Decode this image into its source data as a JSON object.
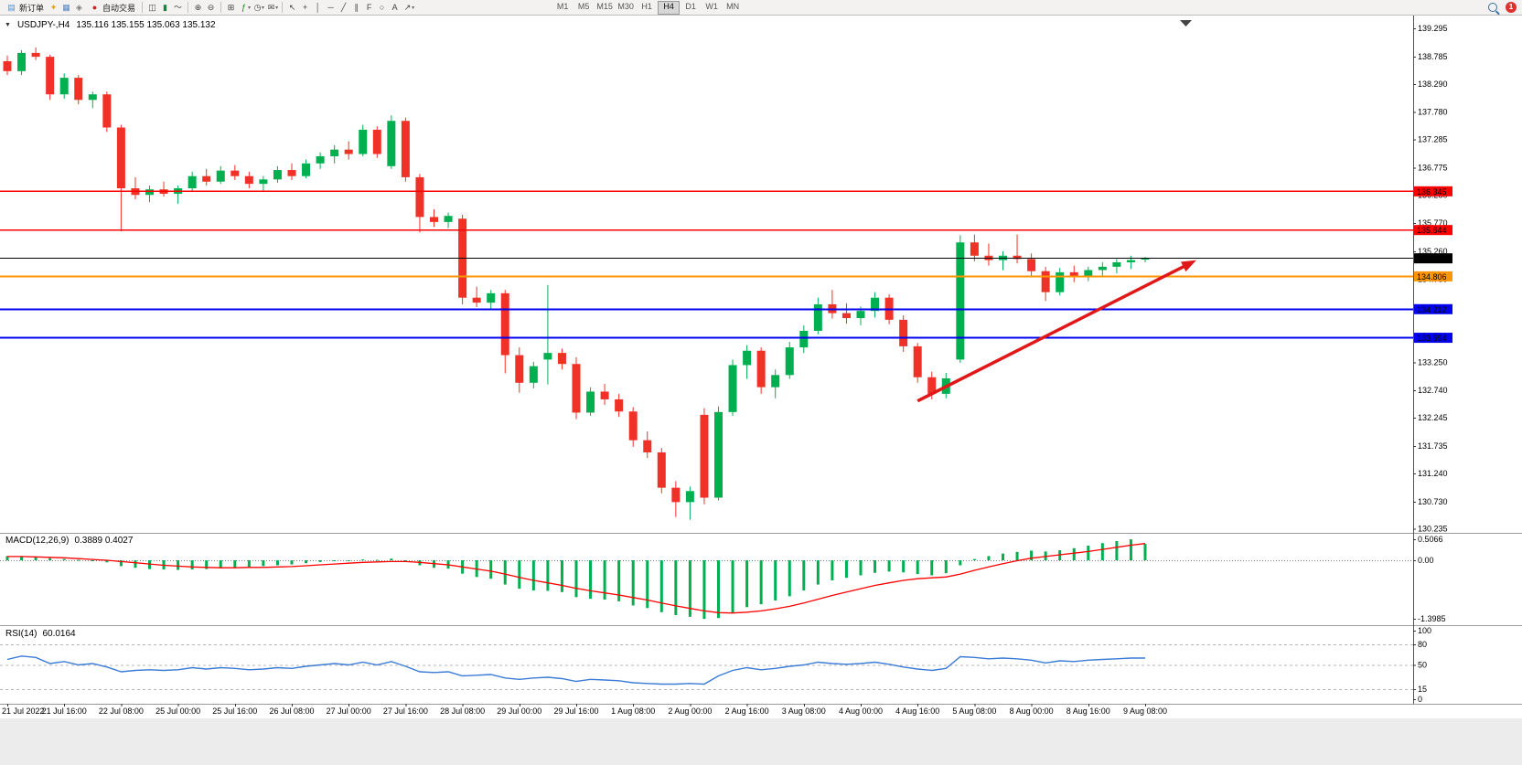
{
  "toolbar": {
    "new_order_label": "新订单",
    "auto_trading_label": "自动交易",
    "timeframes": [
      "M1",
      "M5",
      "M15",
      "M30",
      "H1",
      "H4",
      "D1",
      "W1",
      "MN"
    ],
    "active_timeframe": "H4",
    "notification_count": "1",
    "icons": {
      "caret": "▾",
      "new_order": "▤",
      "market_watch": "✦",
      "data_window": "▦",
      "navigator": "◈",
      "auto_trading": "●",
      "bar_chart": "◫",
      "candle_chart": "▮",
      "line_chart": "～",
      "zoom_in": "⊕",
      "zoom_out": "⊖",
      "tile_windows": "⊞",
      "indicators": "ƒ",
      "periods": "◷",
      "templates": "✉",
      "cursor": "↖",
      "crosshair": "+",
      "vline": "│",
      "hline": "─",
      "trendline": "╱",
      "channel": "∥",
      "fibonacci": "F",
      "ellipse": "○",
      "text_tool": "A",
      "arrows": "↗"
    }
  },
  "window": {
    "caret": "▼",
    "symbol_period": "USDJPY-,H4",
    "ohlc": "135.116 135.155 135.063 135.132"
  },
  "chart_data": {
    "type": "candlestick",
    "symbol": "USDJPY-",
    "timeframe": "H4",
    "title_ohlc": {
      "open": 135.116,
      "high": 135.155,
      "low": 135.063,
      "close": 135.132
    },
    "colors": {
      "bull": "#00b050",
      "bear": "#f03127",
      "macd_hist": "#00b050",
      "macd_signal": "#ff0000",
      "rsi": "#3a7bd5"
    },
    "candles": [
      [
        138.7,
        138.8,
        138.45,
        138.52
      ],
      [
        138.52,
        138.9,
        138.45,
        138.85
      ],
      [
        138.85,
        138.95,
        138.72,
        138.78
      ],
      [
        138.78,
        138.82,
        138.0,
        138.1
      ],
      [
        138.1,
        138.48,
        138.02,
        138.4
      ],
      [
        138.4,
        138.45,
        137.92,
        138.0
      ],
      [
        138.0,
        138.15,
        137.85,
        138.1
      ],
      [
        138.1,
        138.15,
        137.42,
        137.5
      ],
      [
        137.5,
        137.55,
        135.62,
        136.4
      ],
      [
        136.4,
        136.6,
        136.2,
        136.28
      ],
      [
        136.28,
        136.45,
        136.15,
        136.38
      ],
      [
        136.38,
        136.52,
        136.25,
        136.3
      ],
      [
        136.3,
        136.45,
        136.12,
        136.4
      ],
      [
        136.4,
        136.7,
        136.35,
        136.62
      ],
      [
        136.62,
        136.75,
        136.45,
        136.52
      ],
      [
        136.52,
        136.8,
        136.48,
        136.72
      ],
      [
        136.72,
        136.82,
        136.55,
        136.62
      ],
      [
        136.62,
        136.7,
        136.4,
        136.48
      ],
      [
        136.48,
        136.62,
        136.35,
        136.56
      ],
      [
        136.56,
        136.8,
        136.5,
        136.73
      ],
      [
        136.73,
        136.85,
        136.55,
        136.62
      ],
      [
        136.62,
        136.92,
        136.58,
        136.85
      ],
      [
        136.85,
        137.05,
        136.75,
        136.98
      ],
      [
        136.98,
        137.18,
        136.85,
        137.1
      ],
      [
        137.1,
        137.25,
        136.92,
        137.02
      ],
      [
        137.02,
        137.55,
        136.98,
        137.46
      ],
      [
        137.46,
        137.52,
        136.95,
        137.02
      ],
      [
        136.8,
        137.72,
        136.75,
        137.62
      ],
      [
        137.62,
        137.68,
        136.52,
        136.6
      ],
      [
        136.6,
        136.66,
        135.6,
        135.88
      ],
      [
        135.88,
        136.02,
        135.7,
        135.79
      ],
      [
        135.79,
        135.96,
        135.68,
        135.9
      ],
      [
        135.85,
        135.92,
        134.3,
        134.42
      ],
      [
        134.42,
        134.62,
        134.25,
        134.33
      ],
      [
        134.33,
        134.56,
        134.2,
        134.5
      ],
      [
        134.5,
        134.56,
        133.05,
        133.38
      ],
      [
        133.38,
        133.52,
        132.7,
        132.88
      ],
      [
        132.88,
        133.26,
        132.78,
        133.18
      ],
      [
        133.3,
        134.65,
        132.85,
        133.42
      ],
      [
        133.42,
        133.5,
        133.12,
        133.22
      ],
      [
        133.22,
        133.34,
        132.22,
        132.34
      ],
      [
        132.34,
        132.8,
        132.28,
        132.72
      ],
      [
        132.72,
        132.86,
        132.48,
        132.58
      ],
      [
        132.58,
        132.68,
        132.26,
        132.36
      ],
      [
        132.36,
        132.44,
        131.72,
        131.84
      ],
      [
        131.84,
        132.0,
        131.52,
        131.62
      ],
      [
        131.62,
        131.7,
        130.88,
        130.98
      ],
      [
        130.98,
        131.1,
        130.45,
        130.72
      ],
      [
        130.72,
        131.0,
        130.4,
        130.92
      ],
      [
        132.3,
        132.42,
        130.68,
        130.8
      ],
      [
        130.8,
        132.45,
        130.75,
        132.35
      ],
      [
        132.35,
        133.3,
        132.28,
        133.2
      ],
      [
        133.2,
        133.56,
        132.95,
        133.46
      ],
      [
        133.46,
        133.52,
        132.68,
        132.8
      ],
      [
        132.8,
        133.12,
        132.6,
        133.02
      ],
      [
        133.02,
        133.62,
        132.95,
        133.52
      ],
      [
        133.52,
        133.92,
        133.42,
        133.82
      ],
      [
        133.82,
        134.42,
        133.76,
        134.3
      ],
      [
        134.3,
        134.56,
        134.04,
        134.14
      ],
      [
        134.14,
        134.32,
        133.95,
        134.05
      ],
      [
        134.05,
        134.26,
        133.92,
        134.18
      ],
      [
        134.18,
        134.52,
        134.06,
        134.42
      ],
      [
        134.42,
        134.48,
        133.94,
        134.02
      ],
      [
        134.02,
        134.1,
        133.44,
        133.54
      ],
      [
        133.54,
        133.6,
        132.88,
        132.98
      ],
      [
        132.98,
        133.08,
        132.58,
        132.68
      ],
      [
        132.68,
        133.06,
        132.6,
        132.96
      ],
      [
        133.3,
        135.55,
        133.24,
        135.42
      ],
      [
        135.42,
        135.56,
        135.08,
        135.18
      ],
      [
        135.18,
        135.4,
        135.0,
        135.1
      ],
      [
        135.1,
        135.26,
        134.92,
        135.18
      ],
      [
        135.18,
        135.56,
        135.04,
        135.12
      ],
      [
        135.12,
        135.22,
        134.82,
        134.9
      ],
      [
        134.9,
        134.98,
        134.36,
        134.52
      ],
      [
        134.52,
        134.96,
        134.46,
        134.88
      ],
      [
        134.88,
        135.0,
        134.7,
        134.8
      ],
      [
        134.8,
        134.98,
        134.72,
        134.92
      ],
      [
        134.92,
        135.06,
        134.8,
        134.98
      ],
      [
        134.98,
        135.12,
        134.86,
        135.06
      ],
      [
        135.06,
        135.18,
        134.94,
        135.1
      ],
      [
        135.116,
        135.155,
        135.063,
        135.132
      ]
    ],
    "price_ticks": [
      139.295,
      138.785,
      138.29,
      137.78,
      137.285,
      136.775,
      136.28,
      135.77,
      135.26,
      134.75,
      134.24,
      133.73,
      133.25,
      132.74,
      132.245,
      131.735,
      131.24,
      130.73,
      130.235
    ],
    "hlines": [
      {
        "price": 136.345,
        "color": "#ff0000",
        "width": 1.2
      },
      {
        "price": 135.644,
        "color": "#ff0000",
        "width": 1.2
      },
      {
        "price": 135.132,
        "color": "#000000",
        "width": 1
      },
      {
        "price": 134.806,
        "color": "#ff9500",
        "width": 2
      },
      {
        "price": 134.212,
        "color": "#0000ee",
        "width": 2
      },
      {
        "price": 133.694,
        "color": "#0000ee",
        "width": 2
      }
    ],
    "trend_arrow": {
      "from_bar": 64,
      "from_price": 132.55,
      "to_x": 1308,
      "to_price": 135.1,
      "color": "#e01818"
    },
    "macd": {
      "label": "MACD(12,26,9)",
      "values_text": "0.3889 0.4027",
      "axis_ticks": [
        {
          "label": "0.5066",
          "value": 0.5066
        },
        {
          "label": "0.00",
          "value": 0
        },
        {
          "label": "-1.3985",
          "value": -1.3985
        }
      ],
      "hist": [
        0.1,
        0.09,
        0.08,
        0.05,
        0.03,
        0.01,
        -0.01,
        -0.05,
        -0.14,
        -0.18,
        -0.21,
        -0.22,
        -0.23,
        -0.22,
        -0.21,
        -0.19,
        -0.17,
        -0.16,
        -0.14,
        -0.12,
        -0.1,
        -0.07,
        -0.04,
        -0.02,
        -0.01,
        0.02,
        0.01,
        0.04,
        -0.02,
        -0.12,
        -0.18,
        -0.2,
        -0.32,
        -0.4,
        -0.44,
        -0.58,
        -0.68,
        -0.72,
        -0.73,
        -0.76,
        -0.88,
        -0.92,
        -0.94,
        -0.98,
        -1.08,
        -1.14,
        -1.24,
        -1.31,
        -1.35,
        -1.4,
        -1.38,
        -1.26,
        -1.12,
        -1.05,
        -0.96,
        -0.86,
        -0.72,
        -0.58,
        -0.48,
        -0.42,
        -0.36,
        -0.3,
        -0.27,
        -0.29,
        -0.33,
        -0.36,
        -0.31,
        -0.12,
        0.03,
        0.1,
        0.16,
        0.2,
        0.23,
        0.21,
        0.24,
        0.29,
        0.35,
        0.41,
        0.46,
        0.5,
        0.39
      ],
      "signal": [
        0.09,
        0.09,
        0.08,
        0.07,
        0.06,
        0.04,
        0.02,
        0.0,
        -0.03,
        -0.06,
        -0.09,
        -0.12,
        -0.14,
        -0.16,
        -0.17,
        -0.18,
        -0.18,
        -0.17,
        -0.17,
        -0.16,
        -0.15,
        -0.13,
        -0.11,
        -0.09,
        -0.07,
        -0.05,
        -0.04,
        -0.03,
        -0.03,
        -0.05,
        -0.08,
        -0.11,
        -0.16,
        -0.21,
        -0.26,
        -0.33,
        -0.41,
        -0.48,
        -0.54,
        -0.6,
        -0.67,
        -0.73,
        -0.78,
        -0.83,
        -0.89,
        -0.95,
        -1.02,
        -1.09,
        -1.15,
        -1.21,
        -1.25,
        -1.26,
        -1.24,
        -1.21,
        -1.16,
        -1.1,
        -1.02,
        -0.93,
        -0.84,
        -0.76,
        -0.68,
        -0.6,
        -0.54,
        -0.48,
        -0.44,
        -0.42,
        -0.4,
        -0.33,
        -0.24,
        -0.16,
        -0.08,
        -0.01,
        0.05,
        0.09,
        0.13,
        0.17,
        0.21,
        0.26,
        0.31,
        0.36,
        0.4
      ]
    },
    "rsi": {
      "label": "RSI(14)",
      "value_text": "60.0164",
      "axis_ticks": [
        {
          "label": "100",
          "value": 100
        },
        {
          "label": "80",
          "value": 80
        },
        {
          "label": "50",
          "value": 50
        },
        {
          "label": "15",
          "value": 15
        },
        {
          "label": "0",
          "value": 0
        }
      ],
      "levels": [
        80,
        50,
        15
      ],
      "series": [
        58,
        63,
        61,
        52,
        55,
        50,
        52,
        47,
        40,
        42,
        43,
        42,
        43,
        46,
        44,
        46,
        45,
        43,
        44,
        46,
        45,
        48,
        50,
        52,
        50,
        54,
        50,
        55,
        48,
        40,
        39,
        40,
        34,
        35,
        36,
        31,
        29,
        31,
        32,
        30,
        26,
        29,
        28,
        27,
        24,
        23,
        22,
        22,
        23,
        22,
        34,
        42,
        46,
        43,
        45,
        48,
        50,
        54,
        52,
        51,
        52,
        54,
        51,
        47,
        44,
        42,
        45,
        62,
        61,
        59,
        60,
        59,
        57,
        53,
        56,
        55,
        57,
        58,
        59,
        60,
        60
      ]
    },
    "date_labels": [
      {
        "bar": 0,
        "text": "21 Jul 2022"
      },
      {
        "bar": 4,
        "text": "21 Jul 16:00"
      },
      {
        "bar": 8,
        "text": "22 Jul 08:00"
      },
      {
        "bar": 12,
        "text": "25 Jul 00:00"
      },
      {
        "bar": 16,
        "text": "25 Jul 16:00"
      },
      {
        "bar": 20,
        "text": "26 Jul 08:00"
      },
      {
        "bar": 24,
        "text": "27 Jul 00:00"
      },
      {
        "bar": 28,
        "text": "27 Jul 16:00"
      },
      {
        "bar": 32,
        "text": "28 Jul 08:00"
      },
      {
        "bar": 36,
        "text": "29 Jul 00:00"
      },
      {
        "bar": 40,
        "text": "29 Jul 16:00"
      },
      {
        "bar": 44,
        "text": "1 Aug 08:00"
      },
      {
        "bar": 48,
        "text": "2 Aug 00:00"
      },
      {
        "bar": 52,
        "text": "2 Aug 16:00"
      },
      {
        "bar": 56,
        "text": "3 Aug 08:00"
      },
      {
        "bar": 60,
        "text": "4 Aug 00:00"
      },
      {
        "bar": 64,
        "text": "4 Aug 16:00"
      },
      {
        "bar": 68,
        "text": "5 Aug 08:00"
      },
      {
        "bar": 72,
        "text": "8 Aug 00:00"
      },
      {
        "bar": 76,
        "text": "8 Aug 16:00"
      },
      {
        "bar": 80,
        "text": "9 Aug 08:00"
      }
    ]
  }
}
